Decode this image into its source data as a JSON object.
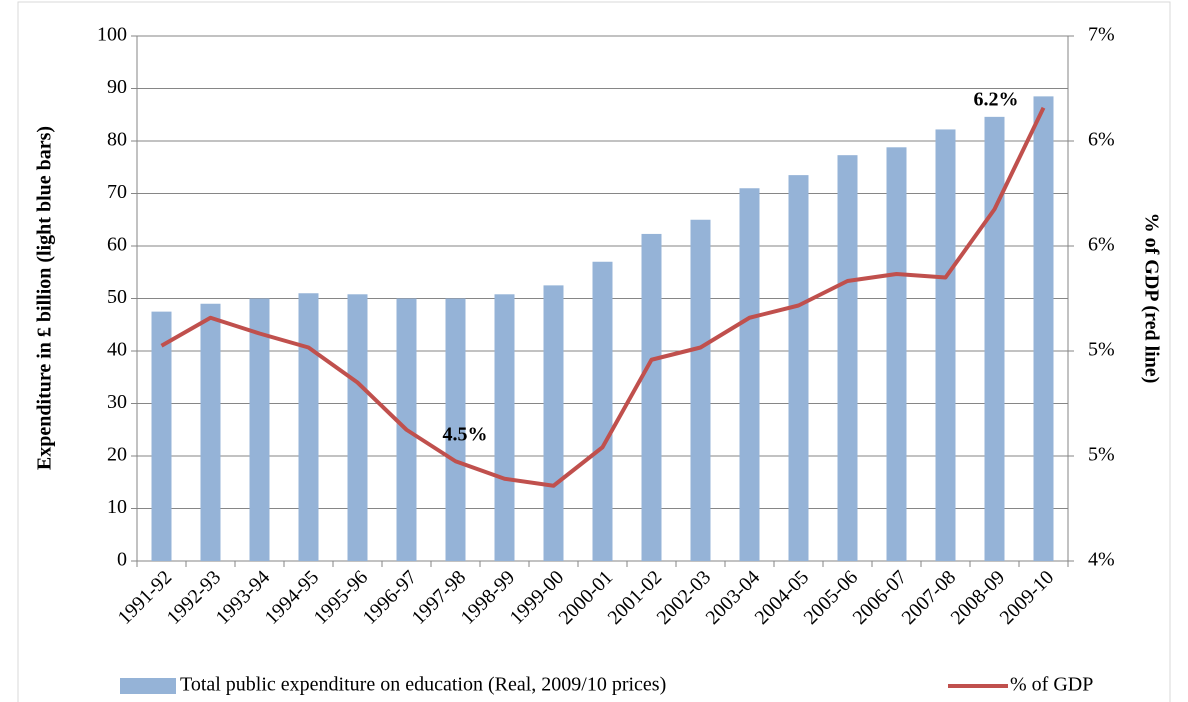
{
  "chart_data": {
    "type": "bar_line",
    "y_label": "Expenditure in £ billion (light blue bars)",
    "y2_label": "% of GDP (red line)",
    "categories": [
      "1991-92",
      "1992-93",
      "1993-94",
      "1994-95",
      "1995-96",
      "1996-97",
      "1997-98",
      "1998-99",
      "1999-00",
      "2000-01",
      "2001-02",
      "2002-03",
      "2003-04",
      "2004-05",
      "2005-06",
      "2006-07",
      "2007-08",
      "2008-09",
      "2009-10"
    ],
    "series": [
      {
        "name": "Total public expenditure on education (Real, 2009/10 prices)",
        "type": "bar",
        "color": "#95b3d7",
        "values": [
          47.5,
          49,
          50,
          51,
          50.8,
          50,
          50,
          50.8,
          52.5,
          57,
          62.3,
          65,
          71,
          73.5,
          77.3,
          78.8,
          82.2,
          84.6,
          88.5
        ]
      },
      {
        "name": "% of GDP",
        "type": "line",
        "axis": "y2",
        "color": "#c0504d",
        "values": [
          5.23,
          5.39,
          5.3,
          5.22,
          5.02,
          4.75,
          4.57,
          4.47,
          4.43,
          4.65,
          5.15,
          5.22,
          5.39,
          5.46,
          5.6,
          5.64,
          5.62,
          6.01,
          6.59
        ]
      }
    ],
    "annotations": [
      "4.5%",
      "6.2%"
    ],
    "ylim": [
      0,
      100
    ],
    "yticks": [
      0,
      10,
      20,
      30,
      40,
      50,
      60,
      70,
      80,
      90,
      100
    ],
    "y2lim": [
      4,
      7
    ],
    "y2ticks": [
      {
        "value": 4,
        "label": "4%"
      },
      {
        "value": 4.6,
        "label": "5%"
      },
      {
        "value": 5.2,
        "label": "5%"
      },
      {
        "value": 5.8,
        "label": "6%"
      },
      {
        "value": 6.4,
        "label": "6%"
      },
      {
        "value": 7,
        "label": "7%"
      }
    ],
    "grid": true
  }
}
